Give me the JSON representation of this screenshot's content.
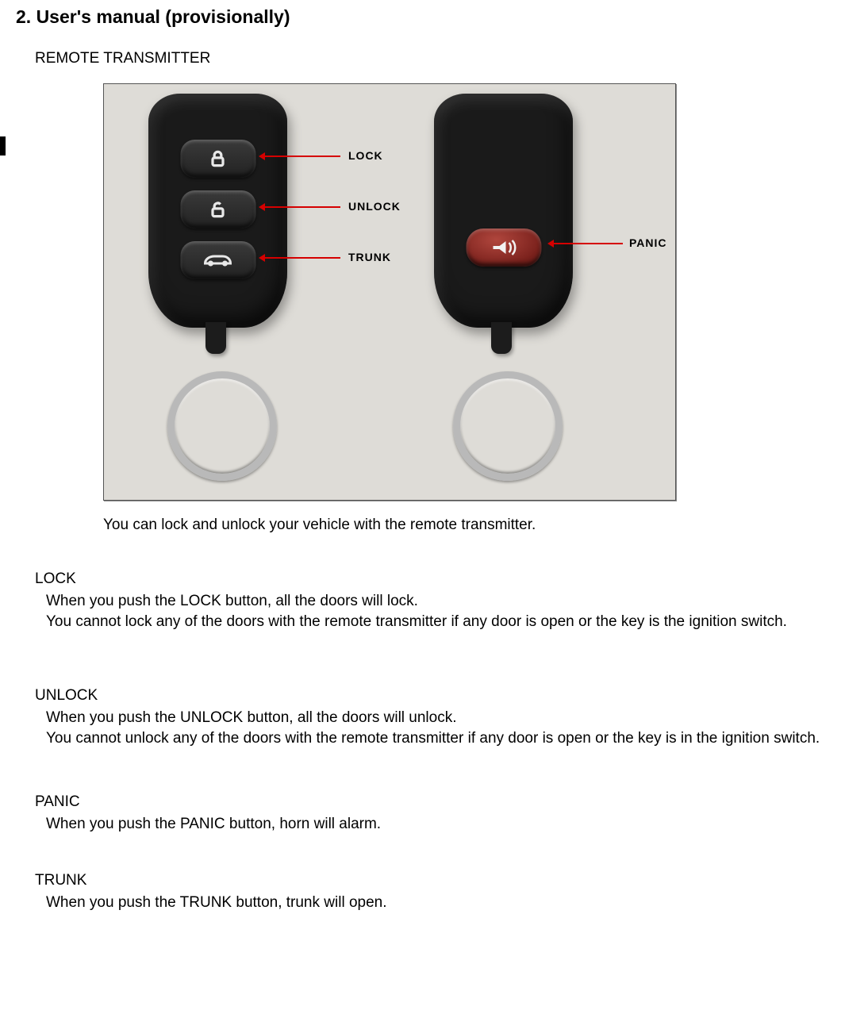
{
  "page": {
    "title": "2. User's manual (provisionally)",
    "section_heading": "REMOTE TRANSMITTER",
    "caption": "You can lock and unlock your vehicle with the remote transmitter."
  },
  "diagram": {
    "background_color": "#dedcd7",
    "border_color": "#555555",
    "arrow_color": "#d50000",
    "callout_font": "Arial",
    "callouts": {
      "lock": "LOCK",
      "unlock": "UNLOCK",
      "trunk": "TRUNK",
      "panic": "PANIC"
    },
    "fob_body_color": "#1a1a1a",
    "panic_button_color": "#7a211c",
    "keyring_color": "#b9b9b9"
  },
  "functions": {
    "lock": {
      "title": "LOCK",
      "text": "When you push the LOCK button, all the doors will lock.\nYou cannot lock any of the doors with the remote transmitter if any door is open or the key is the ignition switch."
    },
    "unlock": {
      "title": "UNLOCK",
      "text": "When you push the UNLOCK button, all the doors will unlock.\nYou cannot unlock any of the doors with the remote transmitter if any door is open or the key is in the ignition switch."
    },
    "panic": {
      "title": "PANIC",
      "text": "When you push the PANIC button, horn will alarm."
    },
    "trunk": {
      "title": "TRUNK",
      "text": "When you push the TRUNK button, trunk will open."
    }
  },
  "style": {
    "body_font": "Verdana",
    "title_fontsize": 23,
    "body_fontsize": 19,
    "text_color": "#000000",
    "page_background": "#ffffff"
  }
}
